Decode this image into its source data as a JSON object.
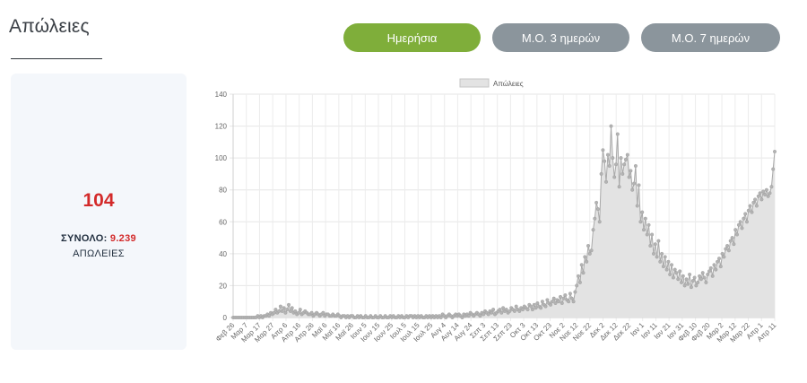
{
  "section": {
    "title": "Απώλειες"
  },
  "toggles": [
    {
      "label": "Ημερήσια",
      "active": true
    },
    {
      "label": "Μ.Ο. 3 ημερών",
      "active": false
    },
    {
      "label": "Μ.Ο. 7 ημερών",
      "active": false
    }
  ],
  "stat": {
    "value": "104",
    "total_label": "ΣΥΝΟΛΟ: ",
    "total_value": "9.239",
    "label": "ΑΠΩΛΕΙΕΣ"
  },
  "colors": {
    "accent_green": "#7fae3a",
    "toggle_grey": "#8b959c",
    "value_red": "#d32a2a",
    "area_fill": "#e3e3e3",
    "line": "#a9a9a9",
    "point": "#b3b3b3"
  },
  "chart_data": {
    "type": "area",
    "legend": {
      "entries": [
        "Απώλειες"
      ],
      "position": "top"
    },
    "ylim": [
      0,
      140
    ],
    "yticks": [
      0,
      20,
      40,
      60,
      80,
      100,
      120,
      140
    ],
    "grid": true,
    "start_date": "Φεβ 26",
    "x_tick_labels": [
      "Φεβ 26",
      "Μαρ 7",
      "Μαρ 17",
      "Μαρ 27",
      "Απρ 6",
      "Απρ 16",
      "Απρ 26",
      "Μαϊ 6",
      "Μαϊ 16",
      "Μαϊ 26",
      "Ιουν 5",
      "Ιουν 15",
      "Ιουν 25",
      "Ιουλ 5",
      "Ιουλ 15",
      "Ιουλ 25",
      "Αυγ 4",
      "Αυγ 14",
      "Αυγ 24",
      "Σεπ 3",
      "Σεπ 13",
      "Σεπ 23",
      "Οκτ 3",
      "Οκτ 13",
      "Οκτ 23",
      "Νοε 2",
      "Νοε 12",
      "Νοε 22",
      "Δεκ 2",
      "Δεκ 12",
      "Δεκ 22",
      "Ιαν 1",
      "Ιαν 11",
      "Ιαν 21",
      "Ιαν 31",
      "Φεβ 10",
      "Φεβ 20",
      "Μαρ 2",
      "Μαρ 12",
      "Μαρ 22",
      "Απρ 1",
      "Απρ 11"
    ],
    "values": [
      0,
      0,
      0,
      0,
      0,
      0,
      0,
      0,
      0,
      0,
      0,
      0,
      0,
      0,
      0,
      1,
      0,
      1,
      0,
      1,
      1,
      2,
      1,
      3,
      2,
      3,
      5,
      3,
      4,
      7,
      4,
      6,
      3,
      5,
      8,
      4,
      6,
      3,
      4,
      2,
      3,
      5,
      2,
      3,
      4,
      3,
      2,
      2,
      3,
      1,
      2,
      3,
      2,
      1,
      2,
      3,
      1,
      2,
      2,
      1,
      1,
      2,
      1,
      1,
      2,
      1,
      0,
      1,
      1,
      0,
      1,
      0,
      1,
      1,
      0,
      0,
      1,
      0,
      1,
      0,
      0,
      1,
      0,
      0,
      1,
      0,
      0,
      1,
      0,
      0,
      1,
      0,
      0,
      1,
      0,
      0,
      1,
      0,
      1,
      0,
      0,
      1,
      0,
      1,
      0,
      0,
      1,
      0,
      1,
      1,
      0,
      1,
      0,
      1,
      0,
      1,
      0,
      0,
      1,
      0,
      1,
      0,
      1,
      0,
      1,
      0,
      1,
      0,
      2,
      1,
      0,
      1,
      2,
      1,
      0,
      1,
      2,
      1,
      2,
      1,
      0,
      2,
      1,
      2,
      1,
      3,
      2,
      1,
      2,
      3,
      2,
      1,
      3,
      2,
      4,
      3,
      2,
      4,
      3,
      5,
      2,
      3,
      4,
      5,
      3,
      6,
      4,
      5,
      3,
      4,
      6,
      5,
      4,
      7,
      5,
      4,
      6,
      5,
      7,
      6,
      5,
      8,
      7,
      5,
      8,
      6,
      9,
      7,
      6,
      10,
      8,
      7,
      11,
      9,
      8,
      10,
      12,
      9,
      11,
      10,
      13,
      9,
      12,
      14,
      11,
      10,
      15,
      12,
      10,
      16,
      20,
      26,
      22,
      33,
      28,
      38,
      35,
      45,
      40,
      42,
      55,
      62,
      72,
      68,
      60,
      90,
      105,
      98,
      85,
      102,
      95,
      120,
      100,
      88,
      96,
      115,
      82,
      100,
      90,
      96,
      99,
      102,
      88,
      92,
      80,
      84,
      95,
      70,
      83,
      60,
      66,
      55,
      62,
      52,
      58,
      45,
      52,
      40,
      46,
      38,
      48,
      35,
      40,
      32,
      38,
      30,
      35,
      27,
      33,
      25,
      30,
      28,
      24,
      29,
      22,
      26,
      20,
      24,
      21,
      27,
      19,
      23,
      25,
      20,
      22,
      26,
      24,
      28,
      25,
      22,
      27,
      29,
      31,
      26,
      33,
      30,
      35,
      37,
      32,
      40,
      38,
      43,
      45,
      42,
      48,
      50,
      46,
      55,
      52,
      58,
      60,
      56,
      62,
      65,
      60,
      67,
      70,
      66,
      72,
      74,
      70,
      76,
      78,
      74,
      79,
      77,
      80,
      76,
      78,
      82,
      93,
      104
    ],
    "title": "",
    "xlabel": "",
    "ylabel": ""
  }
}
